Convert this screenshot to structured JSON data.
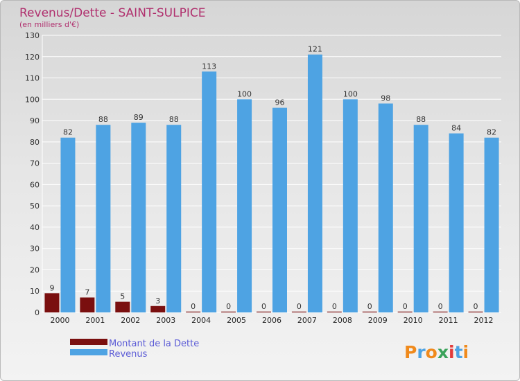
{
  "chart_data": {
    "type": "bar",
    "title": "Revenus/Dette - SAINT-SULPICE",
    "subtitle": "(en milliers d'€)",
    "categories": [
      "2000",
      "2001",
      "2002",
      "2003",
      "2004",
      "2005",
      "2006",
      "2007",
      "2008",
      "2009",
      "2010",
      "2011",
      "2012"
    ],
    "series": [
      {
        "name": "Montant de la Dette",
        "color": "#7a0f0f",
        "values": [
          9,
          7,
          5,
          3,
          0,
          0,
          0,
          0,
          0,
          0,
          0,
          0,
          0
        ]
      },
      {
        "name": "Revenus",
        "color": "#4ea3e3",
        "values": [
          82,
          88,
          89,
          88,
          113,
          100,
          96,
          121,
          100,
          98,
          88,
          84,
          82
        ]
      }
    ],
    "ylim": [
      0,
      130
    ],
    "yticks": [
      0,
      10,
      20,
      30,
      40,
      50,
      60,
      70,
      80,
      90,
      100,
      110,
      120,
      130
    ],
    "grid": true,
    "legend_position": "bottom-left"
  },
  "branding": {
    "logo_letters": [
      "P",
      "r",
      "o",
      "x",
      "i",
      "t",
      "i"
    ],
    "logo_colors": [
      "#f08a1c",
      "#4ea3e3",
      "#f08a1c",
      "#3aa35a",
      "#e23b3b",
      "#4ea3e3",
      "#f08a1c"
    ]
  }
}
